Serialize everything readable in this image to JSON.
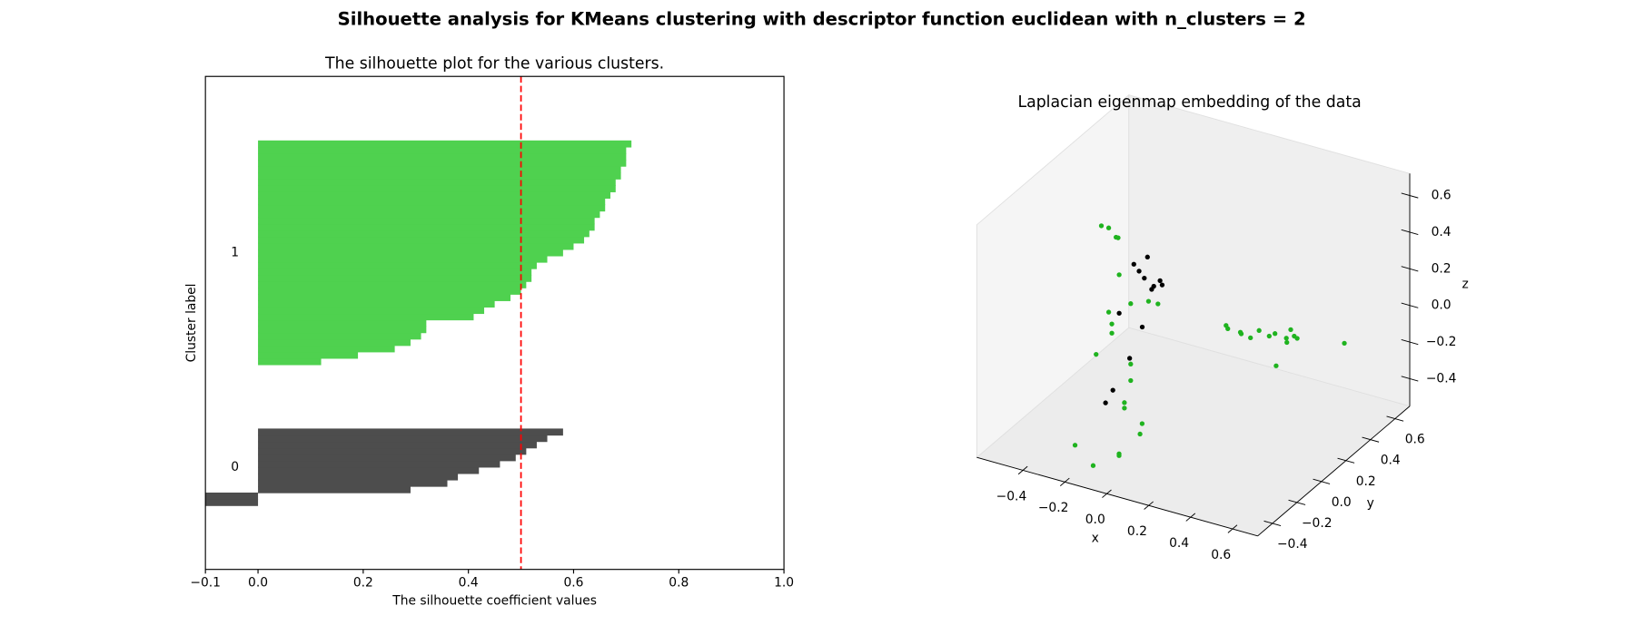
{
  "title": "Silhouette analysis for KMeans clustering with descriptor function euclidean with n_clusters = 2",
  "chart_data": [
    {
      "type": "silhouette",
      "title": "The silhouette plot for the various clusters.",
      "x_label": "The silhouette coefficient values",
      "y_label": "Cluster label",
      "xlim": [
        -0.1,
        1.0
      ],
      "xticks": [
        {
          "value": -0.1,
          "label": "−0.1"
        },
        {
          "value": 0,
          "label": "0.0"
        },
        {
          "value": 0.2,
          "label": "0.2"
        },
        {
          "value": 0.4,
          "label": "0.4"
        },
        {
          "value": 0.6,
          "label": "0.6"
        },
        {
          "value": 0.8,
          "label": "0.8"
        },
        {
          "value": 1.0,
          "label": "1.0"
        }
      ],
      "series": [
        {
          "name": "0",
          "color": "#4d4d4d",
          "values": [
            -0.12,
            -0.1,
            0.29,
            0.36,
            0.38,
            0.42,
            0.46,
            0.49,
            0.51,
            0.53,
            0.55,
            0.58
          ]
        },
        {
          "name": "1",
          "color": "#4fd14f",
          "values": [
            0.12,
            0.19,
            0.26,
            0.29,
            0.31,
            0.32,
            0.32,
            0.41,
            0.43,
            0.45,
            0.48,
            0.5,
            0.51,
            0.52,
            0.52,
            0.53,
            0.55,
            0.58,
            0.6,
            0.62,
            0.63,
            0.64,
            0.64,
            0.65,
            0.66,
            0.66,
            0.67,
            0.68,
            0.68,
            0.69,
            0.69,
            0.7,
            0.7,
            0.7,
            0.71
          ]
        }
      ],
      "reference_line": {
        "value": 0.5,
        "color": "#ff0000"
      }
    },
    {
      "type": "scatter3d",
      "title": "Laplacian eigenmap embedding of the data",
      "x_label": "x",
      "y_label": "y",
      "z_label": "z",
      "xlim": [
        -0.62,
        0.72
      ],
      "ylim": [
        -0.52,
        0.72
      ],
      "zlim": [
        -0.55,
        0.72
      ],
      "xticks": [
        {
          "value": -0.4,
          "label": "−0.4"
        },
        {
          "value": -0.2,
          "label": "−0.2"
        },
        {
          "value": 0,
          "label": "0.0"
        },
        {
          "value": 0.2,
          "label": "0.2"
        },
        {
          "value": 0.4,
          "label": "0.4"
        },
        {
          "value": 0.6,
          "label": "0.6"
        }
      ],
      "yticks": [
        {
          "value": -0.4,
          "label": "−0.4"
        },
        {
          "value": -0.2,
          "label": "−0.2"
        },
        {
          "value": 0,
          "label": "0.0"
        },
        {
          "value": 0.2,
          "label": "0.2"
        },
        {
          "value": 0.4,
          "label": "0.4"
        },
        {
          "value": 0.6,
          "label": "0.6"
        }
      ],
      "zticks": [
        {
          "value": -0.4,
          "label": "−0.4"
        },
        {
          "value": -0.2,
          "label": "−0.2"
        },
        {
          "value": 0,
          "label": "0.0"
        },
        {
          "value": 0.2,
          "label": "0.2"
        },
        {
          "value": 0.4,
          "label": "0.4"
        },
        {
          "value": 0.6,
          "label": "0.6"
        }
      ],
      "series": [
        {
          "color": "#000000",
          "x": [
            -0.11,
            -0.175,
            -0.15,
            -0.125,
            -0.08,
            -0.09,
            -0.05,
            -0.04,
            -0.245,
            -0.135,
            -0.195,
            -0.275,
            -0.31
          ],
          "y": [
            0,
            0,
            0,
            0,
            0,
            0,
            0,
            0,
            0,
            0,
            0,
            0,
            0
          ],
          "z": [
            0.41,
            0.35,
            0.32,
            0.29,
            0.26,
            0.24,
            0.3,
            0.28,
            0.06,
            0.02,
            -0.17,
            -0.37,
            -0.45
          ]
        },
        {
          "color": "#1fb31f",
          "x": [
            -0.33,
            -0.295,
            -0.26,
            -0.25,
            -0.245,
            -0.19,
            -0.295,
            -0.28,
            -0.28,
            -0.105,
            -0.06,
            -0.355,
            -0.19,
            -0.19,
            -0.22,
            -0.22,
            0.04,
            0.03,
            -0.28,
            -0.07,
            -0.07,
            -0.106,
            -0.01,
            0.01,
            0.07,
            0.08,
            0.13,
            0.13,
            0.19,
            0.2,
            0.26,
            0.28,
            0.24,
            0.28,
            0.3,
            0.34,
            0.49
          ],
          "y": [
            0,
            0,
            0,
            0,
            0,
            0,
            0,
            0,
            0,
            0,
            0,
            0,
            0,
            0,
            0,
            0,
            -0.3,
            -0.3,
            -0.3,
            -0.3,
            -0.3,
            -0.45,
            0.47,
            0.45,
            0.45,
            0.44,
            0.43,
            0.5,
            0.48,
            0.51,
            0.5,
            0.47,
            0.57,
            0.53,
            0.52,
            0.28,
            0.58
          ],
          "z": [
            0.51,
            0.51,
            0.47,
            0.47,
            0.27,
            0.13,
            0.05,
            -0.01,
            -0.06,
            0.17,
            0.17,
            -0.2,
            -0.2,
            -0.29,
            -0.42,
            -0.45,
            -0.28,
            -0.34,
            -0.5,
            -0.48,
            -0.49,
            -0.47,
            -0.2,
            -0.2,
            -0.2,
            -0.2,
            -0.2,
            -0.2,
            -0.2,
            -0.2,
            -0.2,
            -0.2,
            -0.2,
            -0.2,
            -0.2,
            -0.2,
            -0.2
          ]
        }
      ]
    }
  ]
}
